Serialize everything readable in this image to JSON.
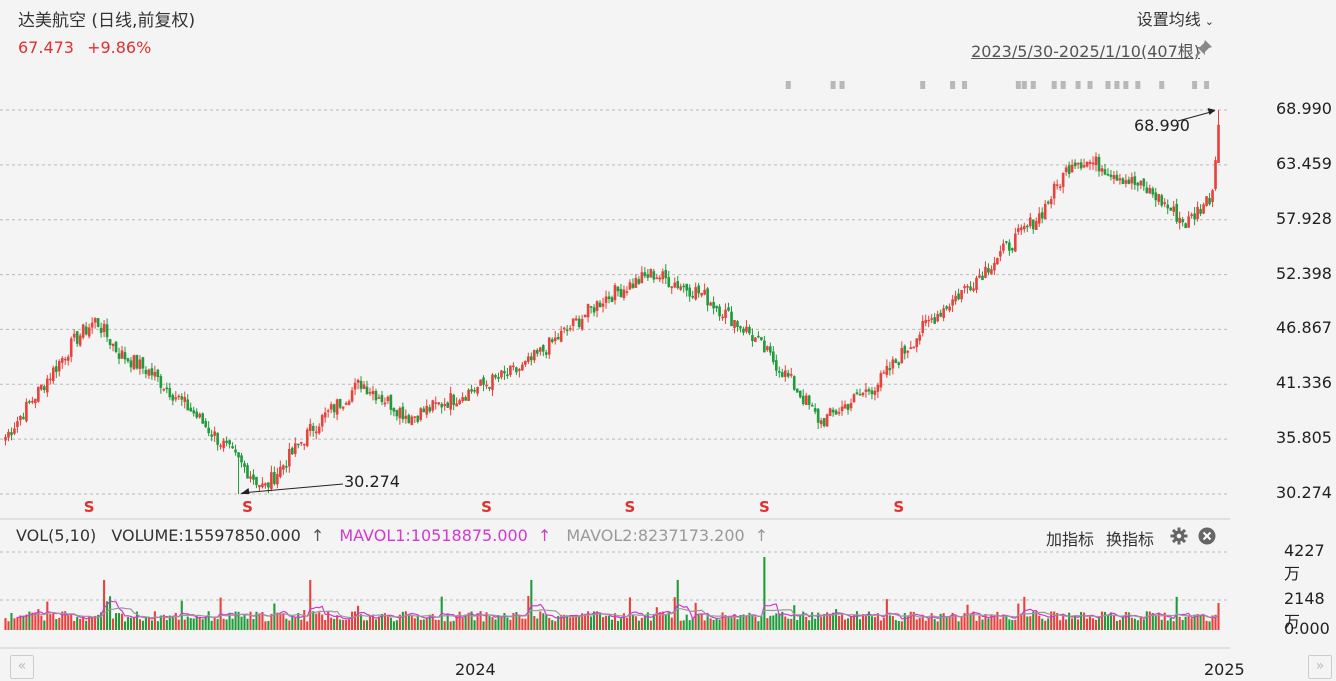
{
  "header": {
    "title": "达美航空 (日线,前复权)",
    "price": "67.473",
    "change": "+9.86%",
    "ma_settings_label": "设置均线",
    "date_range": "2023/5/30-2025/1/10(407根)"
  },
  "volume_header": {
    "vol_label": "VOL(5,10)",
    "volume": "VOLUME:15597850.000",
    "mavol1": "MAVOL1:10518875.000",
    "mavol2": "MAVOL2:8237173.200",
    "up_arrow": "↑",
    "add_indicator": "加指标",
    "switch_indicator": "换指标"
  },
  "colors": {
    "up": "#e8413c",
    "down": "#1f9b3a",
    "mavol1": "#d238d2",
    "mavol2": "#9a9a9a",
    "grid": "#b9b9b9"
  },
  "chart_data": [
    {
      "type": "candlestick",
      "title": "达美航空 (日线,前复权)",
      "x_range": [
        "2023/5/30",
        "2025/1/10"
      ],
      "bars": 407,
      "y_ticks": [
        "68.990",
        "63.459",
        "57.928",
        "52.398",
        "46.867",
        "41.336",
        "35.805",
        "30.274"
      ],
      "ylim": [
        30.274,
        68.99
      ],
      "x_tick_labels": [
        "2024",
        "2025"
      ],
      "annotations": [
        {
          "label": "68.990",
          "type": "high",
          "x": "2025/1/10"
        },
        {
          "label": "30.274",
          "type": "low",
          "x": "2023/10/27"
        }
      ],
      "close_anchors": [
        [
          0,
          36.0
        ],
        [
          22,
          46.0
        ],
        [
          28,
          47.8
        ],
        [
          35,
          44.5
        ],
        [
          45,
          42.5
        ],
        [
          58,
          38.5
        ],
        [
          80,
          30.8
        ],
        [
          95,
          37.0
        ],
        [
          110,
          41.5
        ],
        [
          125,
          38.0
        ],
        [
          160,
          43.0
        ],
        [
          185,
          50.0
        ],
        [
          200,
          52.5
        ],
        [
          215,
          50.5
        ],
        [
          230,
          46.5
        ],
        [
          242,
          42.0
        ],
        [
          252,
          37.5
        ],
        [
          270,
          41.5
        ],
        [
          285,
          47.5
        ],
        [
          300,
          52.0
        ],
        [
          320,
          58.5
        ],
        [
          330,
          64.0
        ],
        [
          338,
          63.5
        ],
        [
          355,
          60.5
        ],
        [
          365,
          57.5
        ],
        [
          373,
          60.5
        ],
        [
          375,
          67.473
        ]
      ],
      "markers": {
        "symbol": "S",
        "positions": [
          26,
          75,
          149,
          193,
          235,
          276
        ]
      }
    },
    {
      "type": "bar",
      "title": "VOL(5,10)",
      "series": [
        {
          "name": "VOLUME",
          "last": 15597850.0
        },
        {
          "name": "MAVOL1",
          "last": 10518875.0
        },
        {
          "name": "MAVOL2",
          "last": 8237173.2
        }
      ],
      "y_ticks": [
        "4227万",
        "2148万",
        "0.000"
      ],
      "ylim": [
        0,
        42270000
      ]
    }
  ]
}
